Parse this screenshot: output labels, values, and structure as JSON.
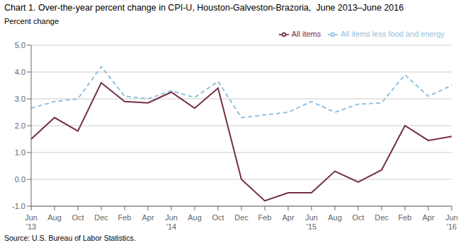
{
  "chart_data": {
    "type": "line",
    "title": "Chart 1. Over-the-year percent change in CPI-U, Houston-Galveston-Brazoria,  June 2013–June 2016",
    "y_label": "Percent change",
    "annotations": [
      "Source: U.S. Bureau of Labor Statistics."
    ],
    "categories": [
      "Jun\n'13",
      "Aug",
      "Oct",
      "Dec",
      "Feb",
      "Apr",
      "Jun\n'14",
      "Aug",
      "Oct",
      "Dec",
      "Feb",
      "Apr",
      "Jun\n'15",
      "Aug",
      "Oct",
      "Dec",
      "Feb",
      "Apr",
      "Jun\n'16"
    ],
    "series": [
      {
        "name": "All items",
        "color": "#722F45",
        "line_style": "solid",
        "values": [
          1.5,
          2.3,
          1.8,
          3.6,
          2.9,
          2.85,
          3.25,
          2.65,
          3.4,
          0.0,
          -0.8,
          -0.5,
          -0.5,
          0.3,
          -0.1,
          0.35,
          2.0,
          1.45,
          1.6
        ]
      },
      {
        "name": "All items less food and energy",
        "color": "#92C0E0",
        "line_style": "dashed",
        "values": [
          2.65,
          2.9,
          3.0,
          4.2,
          3.1,
          3.0,
          3.3,
          3.05,
          3.65,
          2.3,
          2.4,
          2.5,
          2.9,
          2.5,
          2.8,
          2.85,
          3.9,
          3.1,
          3.5
        ]
      }
    ],
    "ylim": [
      -1.0,
      5.0
    ],
    "yticks": [
      {
        "value": -1.0,
        "label": "-1.0"
      },
      {
        "value": 0.0,
        "label": "0.0"
      },
      {
        "value": 1.0,
        "label": "1.0"
      },
      {
        "value": 2.0,
        "label": "2.0"
      },
      {
        "value": 3.0,
        "label": "3.0"
      },
      {
        "value": 4.0,
        "label": "4.0"
      },
      {
        "value": 5.0,
        "label": "5.0"
      }
    ],
    "grid": true,
    "legend": "upper right"
  }
}
